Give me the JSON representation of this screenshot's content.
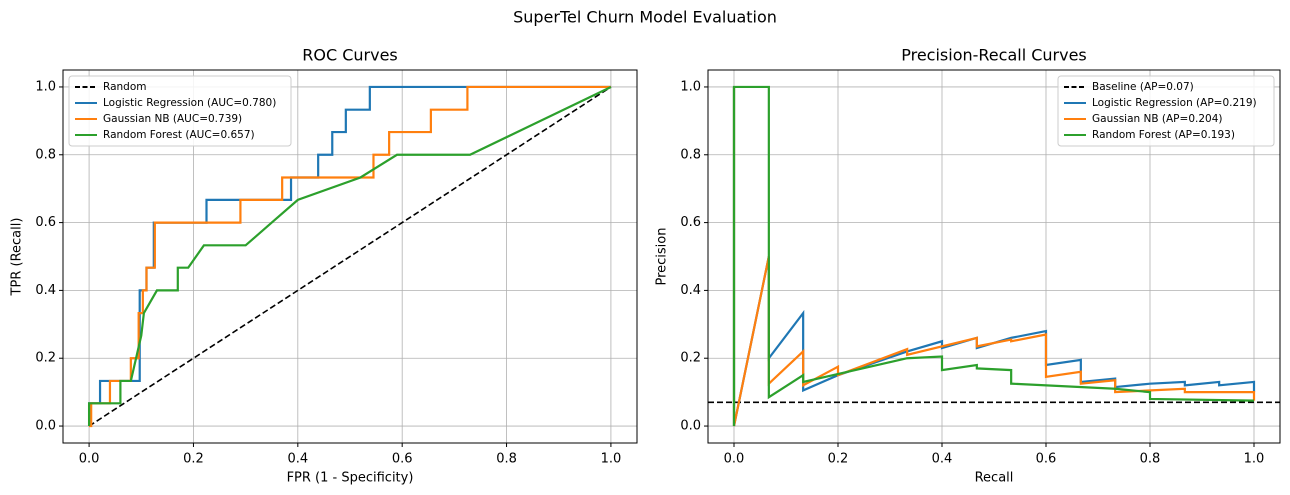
{
  "title": "SuperTel Churn Model Evaluation",
  "chart_data": [
    {
      "type": "line",
      "title": "ROC Curves",
      "x_label": "FPR (1 - Specificity)",
      "y_label": "TPR (Recall)",
      "xlim": [
        -0.05,
        1.05
      ],
      "ylim": [
        -0.05,
        1.05
      ],
      "xticks": [
        {
          "value": 0,
          "label": "0.0"
        },
        0.2,
        0.4,
        0.6,
        0.8,
        {
          "value": 1,
          "label": "1.0"
        }
      ],
      "yticks": [
        {
          "value": 0,
          "label": "0.0"
        },
        0.2,
        0.4,
        0.6,
        0.8,
        {
          "value": 1,
          "label": "1.0"
        }
      ],
      "grid": true,
      "legend": "upper left",
      "series": [
        {
          "name": "Random",
          "color": "#000000",
          "linestyle": "dashed",
          "x": [
            0,
            1
          ],
          "values": [
            0,
            1
          ]
        },
        {
          "name": "Logistic Regression (AUC=0.780)",
          "color": "#1f77b4",
          "linestyle": "solid",
          "x": [
            0,
            0,
            0.021,
            0.021,
            0.097,
            0.097,
            0.11,
            0.11,
            0.124,
            0.124,
            0.225,
            0.225,
            0.387,
            0.387,
            0.439,
            0.439,
            0.466,
            0.466,
            0.492,
            0.492,
            0.538,
            0.538,
            1
          ],
          "values": [
            0,
            0.067,
            0.067,
            0.133,
            0.133,
            0.4,
            0.4,
            0.467,
            0.467,
            0.6,
            0.6,
            0.667,
            0.667,
            0.733,
            0.733,
            0.8,
            0.8,
            0.867,
            0.867,
            0.933,
            0.933,
            1,
            1
          ]
        },
        {
          "name": "Gaussian NB (AUC=0.739)",
          "color": "#ff7f0e",
          "linestyle": "solid",
          "x": [
            0,
            0.004,
            0.004,
            0.04,
            0.04,
            0.08,
            0.08,
            0.095,
            0.095,
            0.103,
            0.103,
            0.11,
            0.11,
            0.126,
            0.126,
            0.29,
            0.29,
            0.37,
            0.37,
            0.545,
            0.545,
            0.575,
            0.575,
            0.655,
            0.655,
            0.725,
            0.725,
            1
          ],
          "values": [
            0,
            0,
            0.067,
            0.067,
            0.133,
            0.133,
            0.2,
            0.2,
            0.333,
            0.333,
            0.4,
            0.4,
            0.467,
            0.467,
            0.6,
            0.6,
            0.667,
            0.667,
            0.733,
            0.733,
            0.8,
            0.8,
            0.867,
            0.867,
            0.933,
            0.933,
            1,
            1
          ]
        },
        {
          "name": "Random Forest (AUC=0.657)",
          "color": "#2ca02c",
          "linestyle": "solid",
          "x": [
            0,
            0,
            0.06,
            0.06,
            0.08,
            0.1,
            0.105,
            0.13,
            0.17,
            0.17,
            0.19,
            0.22,
            0.3,
            0.35,
            0.4,
            0.52,
            0.59,
            0.73,
            1
          ],
          "values": [
            0,
            0.067,
            0.067,
            0.133,
            0.133,
            0.267,
            0.333,
            0.4,
            0.4,
            0.467,
            0.467,
            0.533,
            0.533,
            0.6,
            0.667,
            0.733,
            0.8,
            0.8,
            1
          ]
        }
      ]
    },
    {
      "type": "line",
      "title": "Precision-Recall Curves",
      "x_label": "Recall",
      "y_label": "Precision",
      "xlim": [
        -0.05,
        1.05
      ],
      "ylim": [
        -0.05,
        1.05
      ],
      "xticks": [
        {
          "value": 0,
          "label": "0.0"
        },
        0.2,
        0.4,
        0.6,
        0.8,
        {
          "value": 1,
          "label": "1.0"
        }
      ],
      "yticks": [
        {
          "value": 0,
          "label": "0.0"
        },
        0.2,
        0.4,
        0.6,
        0.8,
        {
          "value": 1,
          "label": "1.0"
        }
      ],
      "grid": true,
      "legend": "upper right",
      "series": [
        {
          "name": "Baseline (AP=0.07)",
          "color": "#000000",
          "linestyle": "dashed",
          "x": [
            -0.05,
            1.05
          ],
          "values": [
            0.07,
            0.07
          ]
        },
        {
          "name": "Logistic Regression (AP=0.219)",
          "color": "#1f77b4",
          "linestyle": "solid",
          "x": [
            0,
            0,
            0.067,
            0.067,
            0.133,
            0.133,
            0.2,
            0.333,
            0.4,
            0.4,
            0.467,
            0.467,
            0.533,
            0.6,
            0.6,
            0.667,
            0.667,
            0.733,
            0.733,
            0.8,
            0.867,
            0.867,
            0.933,
            0.933,
            1,
            1
          ],
          "values": [
            1,
            0,
            0.5,
            0.2,
            0.333,
            0.105,
            0.15,
            0.22,
            0.25,
            0.23,
            0.26,
            0.23,
            0.26,
            0.28,
            0.18,
            0.195,
            0.13,
            0.14,
            0.115,
            0.125,
            0.13,
            0.12,
            0.13,
            0.12,
            0.13,
            0.1
          ]
        },
        {
          "name": "Gaussian NB (AP=0.204)",
          "color": "#ff7f0e",
          "linestyle": "solid",
          "x": [
            0,
            0,
            0.067,
            0.067,
            0.133,
            0.133,
            0.2,
            0.2,
            0.333,
            0.333,
            0.467,
            0.467,
            0.533,
            0.533,
            0.6,
            0.6,
            0.667,
            0.667,
            0.733,
            0.733,
            0.867,
            0.867,
            1,
            1
          ],
          "values": [
            1,
            0,
            0.5,
            0.125,
            0.22,
            0.12,
            0.175,
            0.15,
            0.227,
            0.21,
            0.26,
            0.235,
            0.255,
            0.25,
            0.27,
            0.145,
            0.16,
            0.125,
            0.135,
            0.1,
            0.11,
            0.1,
            0.1,
            0.075
          ]
        },
        {
          "name": "Random Forest (AP=0.193)",
          "color": "#2ca02c",
          "linestyle": "solid",
          "x": [
            0,
            0,
            0.067,
            0.067,
            0.133,
            0.133,
            0.333,
            0.4,
            0.4,
            0.467,
            0.467,
            0.533,
            0.533,
            0.733,
            0.8,
            0.8,
            1
          ],
          "values": [
            0,
            1,
            1,
            0.085,
            0.15,
            0.13,
            0.2,
            0.205,
            0.165,
            0.18,
            0.17,
            0.165,
            0.125,
            0.11,
            0.1,
            0.08,
            0.075
          ]
        }
      ]
    }
  ]
}
